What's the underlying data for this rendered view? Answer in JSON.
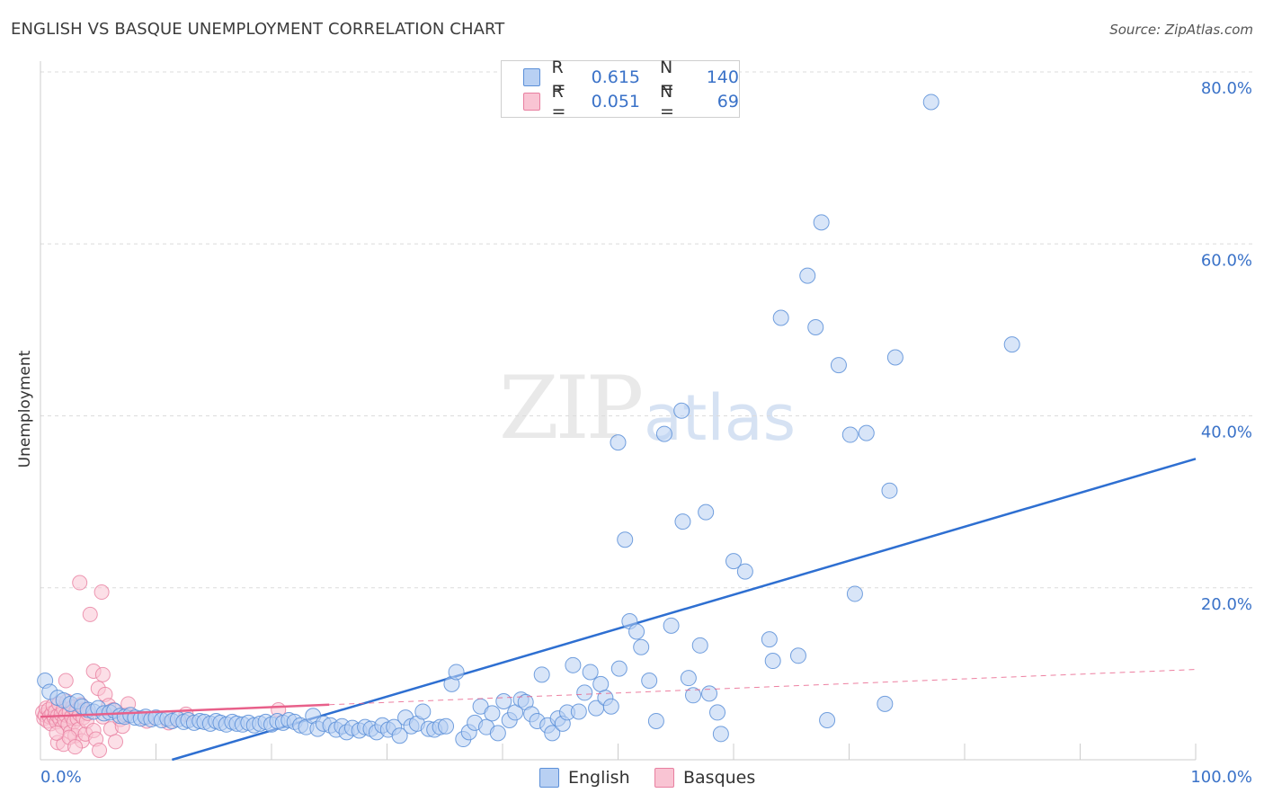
{
  "header": {
    "title": "ENGLISH VS BASQUE UNEMPLOYMENT CORRELATION CHART",
    "source": "Source: ZipAtlas.com"
  },
  "watermark": {
    "zip": "ZIP",
    "atlas": "atlas"
  },
  "legend": {
    "rows": [
      {
        "r_label": "R =",
        "r_value": "0.615",
        "n_label": "N =",
        "n_value": "140"
      },
      {
        "r_label": "R =",
        "r_value": "0.051",
        "n_label": "N =",
        "n_value": "69"
      }
    ]
  },
  "bottom_legend": {
    "english": "English",
    "basques": "Basques"
  },
  "chart_data": {
    "type": "scatter",
    "title": "ENGLISH VS BASQUE UNEMPLOYMENT CORRELATION CHART",
    "xlabel": "",
    "ylabel": "Unemployment",
    "xlim": [
      0,
      100
    ],
    "ylim": [
      0,
      80
    ],
    "x_tick_labels": [
      "0.0%",
      "100.0%"
    ],
    "y_tick_labels": [
      "20.0%",
      "40.0%",
      "60.0%",
      "80.0%"
    ],
    "y_ticks": [
      20,
      40,
      60,
      80
    ],
    "grid": true,
    "legend_position": "top-center",
    "colors": {
      "english": "#5b8fd8",
      "english_fill": "#b8d0f3",
      "basques": "#e87fa0",
      "basques_fill": "#f9c4d3",
      "english_trend": "#2e6fd1",
      "basques_trend": "#e8608a"
    },
    "series": [
      {
        "name": "English",
        "r": 0.615,
        "n": 140,
        "trend": {
          "x": [
            0,
            100
          ],
          "y": [
            -4.5,
            35.0
          ]
        },
        "points": [
          [
            0.4,
            9.2
          ],
          [
            0.8,
            7.9
          ],
          [
            1.5,
            7.2
          ],
          [
            2.0,
            6.9
          ],
          [
            2.6,
            6.5
          ],
          [
            3.2,
            6.8
          ],
          [
            3.6,
            6.2
          ],
          [
            4.1,
            5.8
          ],
          [
            4.6,
            5.6
          ],
          [
            5.0,
            6.0
          ],
          [
            5.5,
            5.4
          ],
          [
            6.0,
            5.5
          ],
          [
            6.4,
            5.7
          ],
          [
            6.9,
            5.1
          ],
          [
            7.3,
            5.0
          ],
          [
            7.8,
            5.2
          ],
          [
            8.2,
            4.9
          ],
          [
            8.7,
            4.8
          ],
          [
            9.1,
            5.0
          ],
          [
            9.6,
            4.7
          ],
          [
            10.0,
            4.9
          ],
          [
            10.5,
            4.6
          ],
          [
            11.0,
            4.8
          ],
          [
            11.4,
            4.5
          ],
          [
            11.9,
            4.7
          ],
          [
            12.4,
            4.4
          ],
          [
            12.8,
            4.6
          ],
          [
            13.3,
            4.3
          ],
          [
            13.8,
            4.5
          ],
          [
            14.2,
            4.4
          ],
          [
            14.7,
            4.2
          ],
          [
            15.2,
            4.5
          ],
          [
            15.6,
            4.3
          ],
          [
            16.1,
            4.1
          ],
          [
            16.6,
            4.4
          ],
          [
            17.0,
            4.2
          ],
          [
            17.5,
            4.1
          ],
          [
            18.0,
            4.3
          ],
          [
            18.5,
            4.0
          ],
          [
            19.0,
            4.2
          ],
          [
            19.5,
            4.4
          ],
          [
            20.0,
            4.1
          ],
          [
            20.5,
            4.5
          ],
          [
            21.0,
            4.3
          ],
          [
            21.5,
            4.6
          ],
          [
            22.0,
            4.4
          ],
          [
            22.5,
            4.0
          ],
          [
            23.0,
            3.8
          ],
          [
            23.6,
            5.1
          ],
          [
            24.0,
            3.6
          ],
          [
            24.5,
            4.2
          ],
          [
            25.1,
            4.0
          ],
          [
            25.6,
            3.5
          ],
          [
            26.1,
            3.9
          ],
          [
            26.5,
            3.2
          ],
          [
            27.0,
            3.7
          ],
          [
            27.6,
            3.4
          ],
          [
            28.1,
            3.8
          ],
          [
            28.6,
            3.6
          ],
          [
            29.1,
            3.2
          ],
          [
            29.6,
            4.0
          ],
          [
            30.1,
            3.5
          ],
          [
            30.6,
            3.8
          ],
          [
            31.1,
            2.8
          ],
          [
            31.6,
            4.9
          ],
          [
            32.1,
            3.9
          ],
          [
            32.6,
            4.2
          ],
          [
            33.1,
            5.6
          ],
          [
            33.6,
            3.6
          ],
          [
            34.1,
            3.5
          ],
          [
            34.6,
            3.8
          ],
          [
            35.1,
            3.9
          ],
          [
            35.6,
            8.8
          ],
          [
            36.0,
            10.2
          ],
          [
            36.6,
            2.4
          ],
          [
            37.1,
            3.2
          ],
          [
            37.6,
            4.3
          ],
          [
            38.1,
            6.2
          ],
          [
            38.6,
            3.8
          ],
          [
            39.1,
            5.4
          ],
          [
            39.6,
            3.1
          ],
          [
            40.1,
            6.8
          ],
          [
            40.6,
            4.6
          ],
          [
            41.1,
            5.5
          ],
          [
            41.6,
            7.0
          ],
          [
            42.0,
            6.7
          ],
          [
            42.5,
            5.3
          ],
          [
            43.0,
            4.5
          ],
          [
            43.4,
            9.9
          ],
          [
            43.9,
            4.0
          ],
          [
            44.3,
            3.1
          ],
          [
            44.8,
            4.8
          ],
          [
            45.2,
            4.2
          ],
          [
            45.6,
            5.5
          ],
          [
            46.1,
            11.0
          ],
          [
            46.6,
            5.6
          ],
          [
            47.1,
            7.8
          ],
          [
            47.6,
            10.2
          ],
          [
            48.1,
            6.0
          ],
          [
            48.5,
            8.8
          ],
          [
            48.9,
            7.2
          ],
          [
            49.4,
            6.2
          ],
          [
            50.1,
            10.6
          ],
          [
            50.6,
            25.6
          ],
          [
            51.0,
            16.1
          ],
          [
            51.6,
            14.9
          ],
          [
            52.0,
            13.1
          ],
          [
            52.7,
            9.2
          ],
          [
            53.3,
            4.5
          ],
          [
            54.6,
            15.6
          ],
          [
            55.6,
            27.7
          ],
          [
            56.1,
            9.5
          ],
          [
            56.5,
            7.5
          ],
          [
            57.1,
            13.3
          ],
          [
            57.6,
            28.8
          ],
          [
            57.9,
            7.7
          ],
          [
            58.6,
            5.5
          ],
          [
            58.9,
            3.0
          ],
          [
            60.0,
            23.1
          ],
          [
            61.0,
            21.9
          ],
          [
            63.1,
            14.0
          ],
          [
            63.4,
            11.5
          ],
          [
            65.6,
            12.1
          ],
          [
            68.1,
            4.6
          ],
          [
            73.1,
            6.5
          ],
          [
            50.0,
            36.9
          ],
          [
            54.0,
            37.9
          ],
          [
            55.5,
            40.6
          ],
          [
            64.1,
            51.4
          ],
          [
            66.4,
            56.3
          ],
          [
            67.1,
            50.3
          ],
          [
            67.6,
            62.5
          ],
          [
            69.1,
            45.9
          ],
          [
            70.1,
            37.8
          ],
          [
            71.5,
            38.0
          ],
          [
            73.5,
            31.3
          ],
          [
            74.0,
            46.8
          ],
          [
            77.1,
            76.5
          ],
          [
            84.1,
            48.3
          ],
          [
            70.5,
            19.3
          ]
        ]
      },
      {
        "name": "Basques",
        "r": 0.051,
        "n": 69,
        "trend": {
          "x": [
            0,
            25
          ],
          "y": [
            5.0,
            6.4
          ]
        },
        "trend_dashed": {
          "x": [
            25,
            100
          ],
          "y": [
            6.4,
            10.5
          ]
        },
        "points": [
          [
            0.2,
            5.5
          ],
          [
            0.3,
            4.8
          ],
          [
            0.4,
            5.2
          ],
          [
            0.5,
            6.0
          ],
          [
            0.6,
            4.5
          ],
          [
            0.7,
            5.8
          ],
          [
            0.8,
            5.0
          ],
          [
            0.9,
            4.2
          ],
          [
            1.0,
            5.4
          ],
          [
            1.1,
            6.3
          ],
          [
            1.2,
            4.9
          ],
          [
            1.3,
            5.6
          ],
          [
            1.4,
            4.4
          ],
          [
            1.5,
            5.1
          ],
          [
            1.6,
            6.5
          ],
          [
            1.7,
            4.7
          ],
          [
            1.8,
            5.3
          ],
          [
            1.9,
            3.8
          ],
          [
            2.0,
            5.9
          ],
          [
            2.1,
            4.6
          ],
          [
            2.2,
            5.2
          ],
          [
            2.3,
            6.8
          ],
          [
            2.4,
            4.1
          ],
          [
            2.5,
            5.5
          ],
          [
            2.6,
            3.2
          ],
          [
            2.7,
            5.0
          ],
          [
            2.8,
            6.1
          ],
          [
            2.9,
            4.4
          ],
          [
            3.0,
            2.8
          ],
          [
            3.1,
            5.7
          ],
          [
            3.2,
            4.8
          ],
          [
            3.3,
            3.5
          ],
          [
            3.4,
            5.3
          ],
          [
            3.5,
            6.4
          ],
          [
            3.6,
            2.2
          ],
          [
            3.7,
            4.9
          ],
          [
            3.8,
            5.8
          ],
          [
            3.9,
            3.0
          ],
          [
            4.0,
            4.5
          ],
          [
            4.1,
            5.4
          ],
          [
            1.5,
            2.0
          ],
          [
            2.0,
            1.8
          ],
          [
            2.5,
            2.6
          ],
          [
            3.0,
            1.5
          ],
          [
            4.6,
            3.4
          ],
          [
            4.8,
            2.4
          ],
          [
            5.0,
            8.3
          ],
          [
            5.1,
            1.1
          ],
          [
            5.4,
            5.0
          ],
          [
            5.6,
            7.6
          ],
          [
            5.9,
            6.3
          ],
          [
            6.1,
            3.6
          ],
          [
            6.3,
            5.8
          ],
          [
            6.5,
            2.1
          ],
          [
            6.9,
            4.7
          ],
          [
            7.1,
            3.9
          ],
          [
            7.4,
            5.2
          ],
          [
            7.6,
            6.5
          ],
          [
            3.4,
            20.6
          ],
          [
            5.3,
            19.5
          ],
          [
            4.3,
            16.9
          ],
          [
            4.6,
            10.3
          ],
          [
            5.4,
            9.9
          ],
          [
            1.4,
            3.1
          ],
          [
            9.2,
            4.5
          ],
          [
            11.1,
            4.3
          ],
          [
            12.6,
            5.3
          ],
          [
            20.6,
            5.8
          ],
          [
            2.2,
            9.2
          ]
        ]
      }
    ]
  }
}
